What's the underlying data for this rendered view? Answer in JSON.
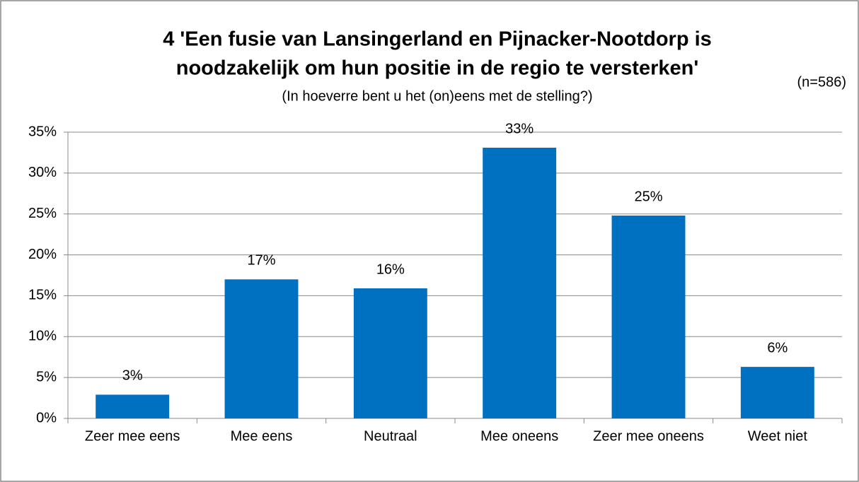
{
  "chart_data": {
    "type": "bar",
    "title": [
      "4  'Een fusie van Lansingerland en Pijnacker-Nootdorp is",
      "noodzakelijk om hun positie in de regio te versterken'"
    ],
    "subtitle": "(In hoeverre bent u het (on)eens met de stelling?)",
    "annotation": "(n=586)",
    "categories": [
      "Zeer mee eens",
      "Mee eens",
      "Neutraal",
      "Mee oneens",
      "Zeer mee oneens",
      "Weet niet"
    ],
    "values": [
      2.9,
      17.0,
      15.9,
      33.1,
      24.8,
      6.3
    ],
    "value_labels": [
      "3%",
      "17%",
      "16%",
      "33%",
      "25%",
      "6%"
    ],
    "color": "#0070c0",
    "ylim": [
      0,
      35
    ],
    "yticks": [
      {
        "value": 0,
        "label": "0%"
      },
      {
        "value": 5,
        "label": "5%"
      },
      {
        "value": 10,
        "label": "10%"
      },
      {
        "value": 15,
        "label": "15%"
      },
      {
        "value": 20,
        "label": "20%"
      },
      {
        "value": 25,
        "label": "25%"
      },
      {
        "value": 30,
        "label": "30%"
      },
      {
        "value": 35,
        "label": "35%"
      }
    ],
    "grid": true
  }
}
